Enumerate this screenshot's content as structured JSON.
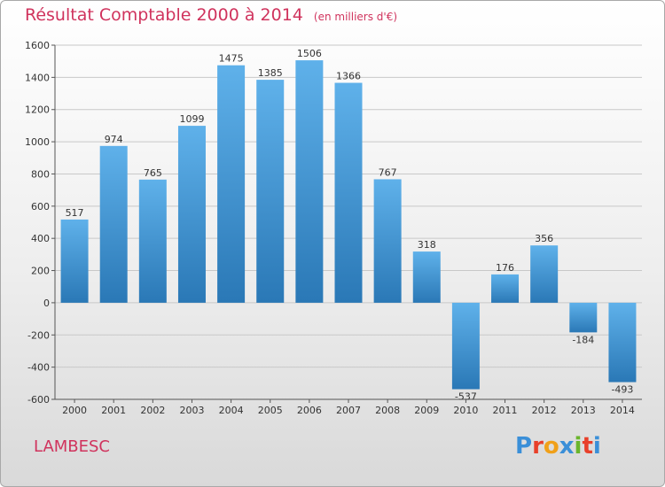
{
  "header": {
    "title": "Résultat Comptable 2000 à 2014",
    "subtitle": "(en milliers d'€)"
  },
  "footer": {
    "commune": "LAMBESC",
    "logo_text": "Proxiti",
    "logo_colors": [
      "#3a8fd8",
      "#e8402a",
      "#f0a019",
      "#3a8fd8",
      "#6ab52c",
      "#e8402a",
      "#3a8fd8"
    ]
  },
  "chart_data": {
    "type": "bar",
    "categories": [
      "2000",
      "2001",
      "2002",
      "2003",
      "2004",
      "2005",
      "2006",
      "2007",
      "2008",
      "2009",
      "2010",
      "2011",
      "2012",
      "2013",
      "2014"
    ],
    "values": [
      517,
      974,
      765,
      1099,
      1475,
      1385,
      1506,
      1366,
      767,
      318,
      -537,
      176,
      356,
      -184,
      -493
    ],
    "ylim": [
      -600,
      1600
    ],
    "yticks": [
      -600,
      -400,
      -200,
      0,
      200,
      400,
      600,
      800,
      1000,
      1200,
      1400,
      1600
    ],
    "grid": true,
    "colors": {
      "bar_top": "#5fb1ea",
      "bar_bottom": "#2a78b6",
      "grid": "#c8c8c8",
      "text": "#333333"
    }
  }
}
